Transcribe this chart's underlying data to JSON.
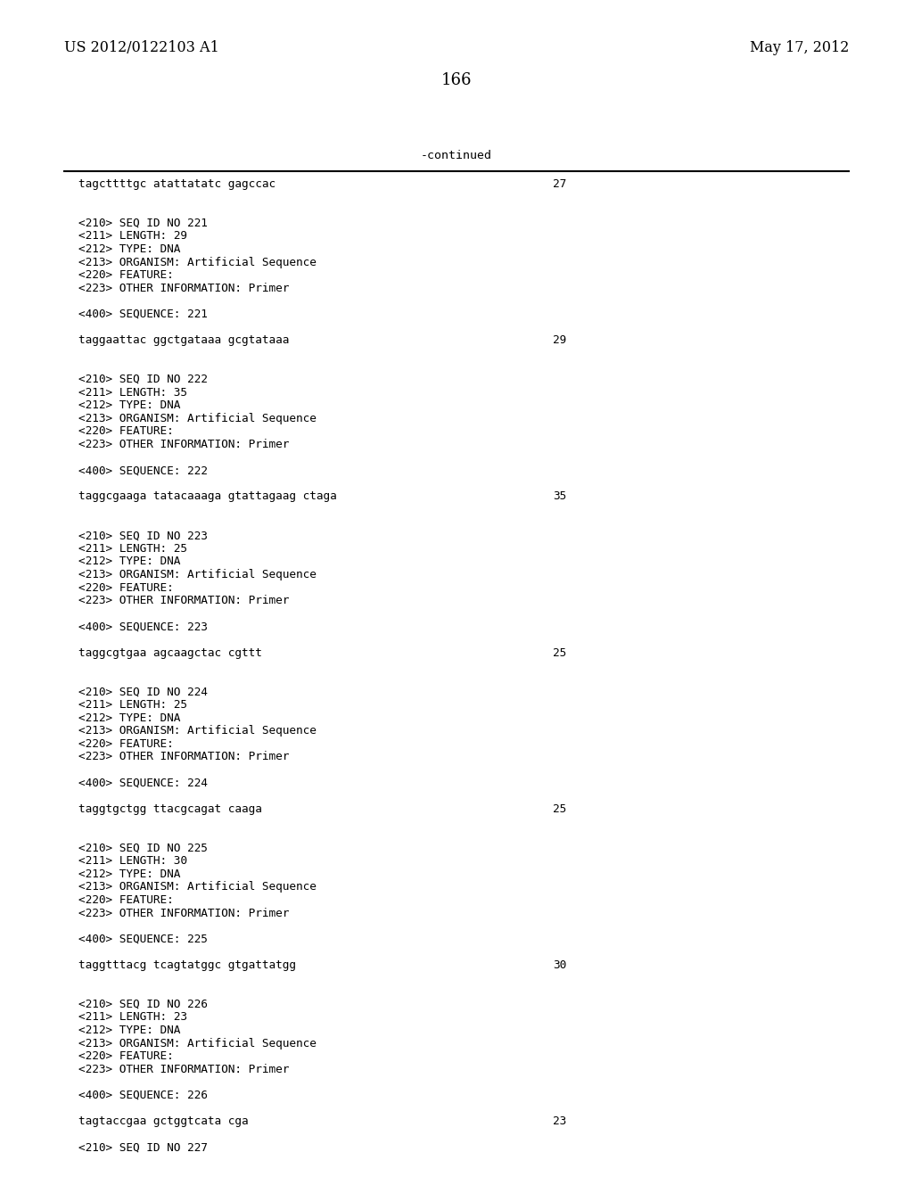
{
  "bg_color": "#ffffff",
  "header_left": "US 2012/0122103 A1",
  "header_right": "May 17, 2012",
  "page_number": "166",
  "continued_label": "-continued",
  "lines": [
    {
      "text": "tagcttttgc atattatatc gagccac",
      "num": "27",
      "type": "seq"
    },
    {
      "text": "",
      "type": "blank"
    },
    {
      "text": "",
      "type": "blank"
    },
    {
      "text": "<210> SEQ ID NO 221",
      "type": "meta"
    },
    {
      "text": "<211> LENGTH: 29",
      "type": "meta"
    },
    {
      "text": "<212> TYPE: DNA",
      "type": "meta"
    },
    {
      "text": "<213> ORGANISM: Artificial Sequence",
      "type": "meta"
    },
    {
      "text": "<220> FEATURE:",
      "type": "meta"
    },
    {
      "text": "<223> OTHER INFORMATION: Primer",
      "type": "meta"
    },
    {
      "text": "",
      "type": "blank"
    },
    {
      "text": "<400> SEQUENCE: 221",
      "type": "meta"
    },
    {
      "text": "",
      "type": "blank"
    },
    {
      "text": "taggaattac ggctgataaa gcgtataaa",
      "num": "29",
      "type": "seq"
    },
    {
      "text": "",
      "type": "blank"
    },
    {
      "text": "",
      "type": "blank"
    },
    {
      "text": "<210> SEQ ID NO 222",
      "type": "meta"
    },
    {
      "text": "<211> LENGTH: 35",
      "type": "meta"
    },
    {
      "text": "<212> TYPE: DNA",
      "type": "meta"
    },
    {
      "text": "<213> ORGANISM: Artificial Sequence",
      "type": "meta"
    },
    {
      "text": "<220> FEATURE:",
      "type": "meta"
    },
    {
      "text": "<223> OTHER INFORMATION: Primer",
      "type": "meta"
    },
    {
      "text": "",
      "type": "blank"
    },
    {
      "text": "<400> SEQUENCE: 222",
      "type": "meta"
    },
    {
      "text": "",
      "type": "blank"
    },
    {
      "text": "taggcgaaga tatacaaaga gtattagaag ctaga",
      "num": "35",
      "type": "seq"
    },
    {
      "text": "",
      "type": "blank"
    },
    {
      "text": "",
      "type": "blank"
    },
    {
      "text": "<210> SEQ ID NO 223",
      "type": "meta"
    },
    {
      "text": "<211> LENGTH: 25",
      "type": "meta"
    },
    {
      "text": "<212> TYPE: DNA",
      "type": "meta"
    },
    {
      "text": "<213> ORGANISM: Artificial Sequence",
      "type": "meta"
    },
    {
      "text": "<220> FEATURE:",
      "type": "meta"
    },
    {
      "text": "<223> OTHER INFORMATION: Primer",
      "type": "meta"
    },
    {
      "text": "",
      "type": "blank"
    },
    {
      "text": "<400> SEQUENCE: 223",
      "type": "meta"
    },
    {
      "text": "",
      "type": "blank"
    },
    {
      "text": "taggcgtgaa agcaagctac cgttt",
      "num": "25",
      "type": "seq"
    },
    {
      "text": "",
      "type": "blank"
    },
    {
      "text": "",
      "type": "blank"
    },
    {
      "text": "<210> SEQ ID NO 224",
      "type": "meta"
    },
    {
      "text": "<211> LENGTH: 25",
      "type": "meta"
    },
    {
      "text": "<212> TYPE: DNA",
      "type": "meta"
    },
    {
      "text": "<213> ORGANISM: Artificial Sequence",
      "type": "meta"
    },
    {
      "text": "<220> FEATURE:",
      "type": "meta"
    },
    {
      "text": "<223> OTHER INFORMATION: Primer",
      "type": "meta"
    },
    {
      "text": "",
      "type": "blank"
    },
    {
      "text": "<400> SEQUENCE: 224",
      "type": "meta"
    },
    {
      "text": "",
      "type": "blank"
    },
    {
      "text": "taggtgctgg ttacgcagat caaga",
      "num": "25",
      "type": "seq"
    },
    {
      "text": "",
      "type": "blank"
    },
    {
      "text": "",
      "type": "blank"
    },
    {
      "text": "<210> SEQ ID NO 225",
      "type": "meta"
    },
    {
      "text": "<211> LENGTH: 30",
      "type": "meta"
    },
    {
      "text": "<212> TYPE: DNA",
      "type": "meta"
    },
    {
      "text": "<213> ORGANISM: Artificial Sequence",
      "type": "meta"
    },
    {
      "text": "<220> FEATURE:",
      "type": "meta"
    },
    {
      "text": "<223> OTHER INFORMATION: Primer",
      "type": "meta"
    },
    {
      "text": "",
      "type": "blank"
    },
    {
      "text": "<400> SEQUENCE: 225",
      "type": "meta"
    },
    {
      "text": "",
      "type": "blank"
    },
    {
      "text": "taggtttacg tcagtatggc gtgattatgg",
      "num": "30",
      "type": "seq"
    },
    {
      "text": "",
      "type": "blank"
    },
    {
      "text": "",
      "type": "blank"
    },
    {
      "text": "<210> SEQ ID NO 226",
      "type": "meta"
    },
    {
      "text": "<211> LENGTH: 23",
      "type": "meta"
    },
    {
      "text": "<212> TYPE: DNA",
      "type": "meta"
    },
    {
      "text": "<213> ORGANISM: Artificial Sequence",
      "type": "meta"
    },
    {
      "text": "<220> FEATURE:",
      "type": "meta"
    },
    {
      "text": "<223> OTHER INFORMATION: Primer",
      "type": "meta"
    },
    {
      "text": "",
      "type": "blank"
    },
    {
      "text": "<400> SEQUENCE: 226",
      "type": "meta"
    },
    {
      "text": "",
      "type": "blank"
    },
    {
      "text": "tagtaccgaa gctggtcata cga",
      "num": "23",
      "type": "seq"
    },
    {
      "text": "",
      "type": "blank"
    },
    {
      "text": "<210> SEQ ID NO 227",
      "type": "meta"
    }
  ]
}
